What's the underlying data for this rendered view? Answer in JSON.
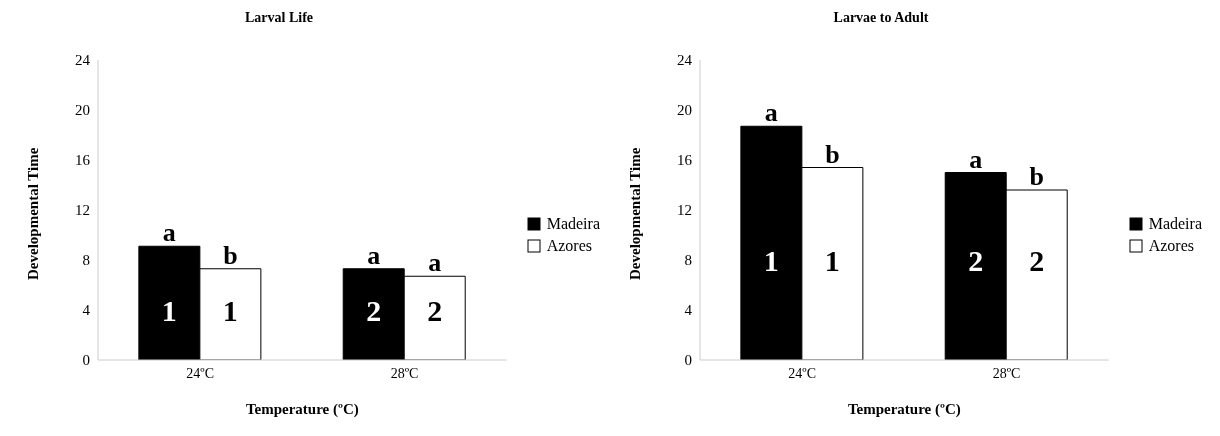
{
  "chart_data": [
    {
      "type": "bar",
      "title": "Larval Life",
      "xlabel": "Temperature (ºC)",
      "ylabel": "Developmental Time",
      "categories": [
        "24ºC",
        "28ºC"
      ],
      "series": [
        {
          "name": "Madeira",
          "color": "#000000",
          "values": [
            9.1,
            7.3
          ]
        },
        {
          "name": "Azores",
          "color": "#ffffff",
          "values": [
            7.3,
            6.7
          ]
        }
      ],
      "ylim": [
        0,
        24
      ],
      "yticks": [
        0,
        4,
        8,
        12,
        16,
        20,
        24
      ],
      "grid": false,
      "legend": "right",
      "annotations": [
        {
          "text": "a",
          "x": "24ºC",
          "y": 9.1
        },
        {
          "text": "b",
          "x": "24ºC",
          "y": 7.3
        },
        {
          "text": "a",
          "x": "28ºC",
          "y": 7.3
        },
        {
          "text": "a",
          "x": "28ºC",
          "y": 6.7
        },
        {
          "text": "1",
          "x": "24ºC",
          "y": 4
        },
        {
          "text": "1",
          "x": "24ºC",
          "y": 4
        },
        {
          "text": "2",
          "x": "28ºC",
          "y": 4
        },
        {
          "text": "2",
          "x": "28ºC",
          "y": 4
        }
      ]
    },
    {
      "type": "bar",
      "title": "Larvae to Adult",
      "xlabel": "Temperature (ºC)",
      "ylabel": "Developmental Time",
      "categories": [
        "24ºC",
        "28ºC"
      ],
      "series": [
        {
          "name": "Madeira",
          "color": "#000000",
          "values": [
            18.7,
            15.0
          ]
        },
        {
          "name": "Azores",
          "color": "#ffffff",
          "values": [
            15.4,
            13.6
          ]
        }
      ],
      "ylim": [
        0,
        24
      ],
      "yticks": [
        0,
        4,
        8,
        12,
        16,
        20,
        24
      ],
      "grid": false,
      "legend": "right",
      "annotations": [
        {
          "text": "a",
          "x": "24ºC",
          "y": 18.7
        },
        {
          "text": "b",
          "x": "24ºC",
          "y": 15.4
        },
        {
          "text": "a",
          "x": "28ºC",
          "y": 15.0
        },
        {
          "text": "b",
          "x": "28ºC",
          "y": 13.6
        },
        {
          "text": "1",
          "x": "24ºC",
          "y": 8
        },
        {
          "text": "1",
          "x": "24ºC",
          "y": 8
        },
        {
          "text": "2",
          "x": "28ºC",
          "y": 8
        },
        {
          "text": "2",
          "x": "28ºC",
          "y": 8
        }
      ]
    }
  ]
}
